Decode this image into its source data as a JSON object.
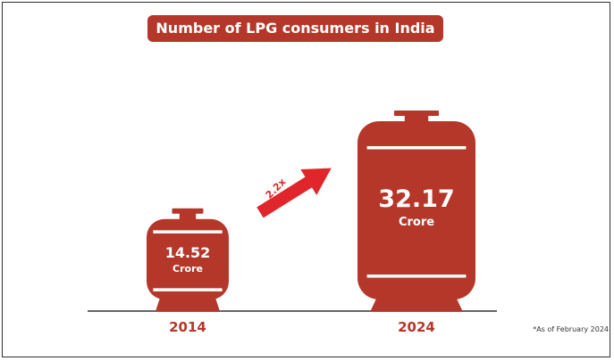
{
  "colors": {
    "accent": "#b5372a",
    "arrow": "#e0262a",
    "baseline": "#333333"
  },
  "chart_data": {
    "type": "bar",
    "title": "Number of LPG consumers in India",
    "categories": [
      "2014",
      "2024"
    ],
    "values": [
      14.52,
      32.17
    ],
    "value_labels": [
      "14.52",
      "32.17"
    ],
    "unit": "Crore",
    "annotation": "2.2x",
    "footnote": "*As of February 2024"
  }
}
